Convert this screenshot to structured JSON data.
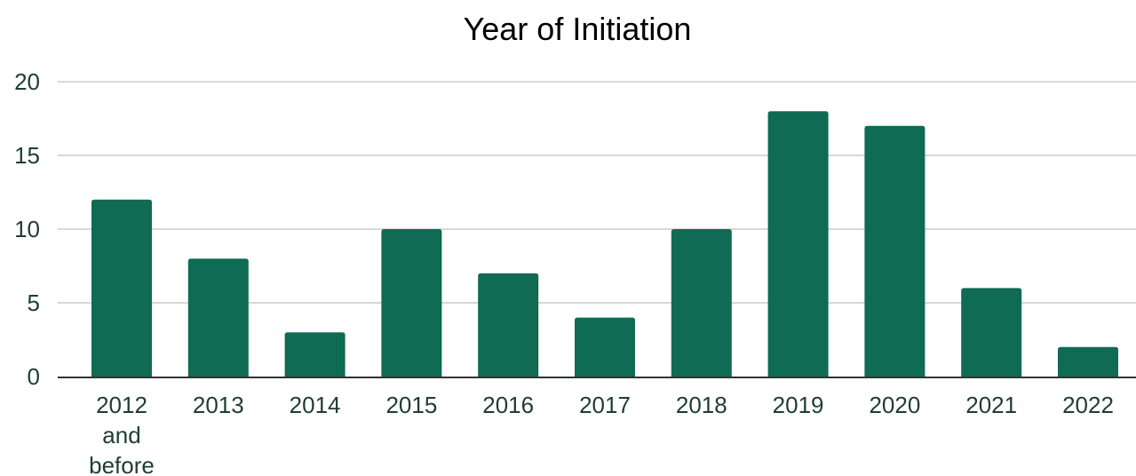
{
  "chart_data": {
    "type": "bar",
    "title": "Year of Initiation",
    "xlabel": "",
    "ylabel": "",
    "categories": [
      [
        "2012",
        "and",
        "before"
      ],
      [
        "2013"
      ],
      [
        "2014"
      ],
      [
        "2015"
      ],
      [
        "2016"
      ],
      [
        "2017"
      ],
      [
        "2018"
      ],
      [
        "2019"
      ],
      [
        "2020"
      ],
      [
        "2021"
      ],
      [
        "2022"
      ]
    ],
    "values": [
      12,
      8,
      3,
      10,
      7,
      4,
      10,
      18,
      17,
      6,
      2
    ],
    "ylim": [
      0,
      20
    ],
    "yticks": [
      "0",
      "5",
      "10",
      "15",
      "20"
    ],
    "grid": true,
    "legend": "none",
    "colors": {
      "bar": "#0f6b53",
      "grid": "#cccccc",
      "axis": "#333333",
      "tick_text": "#1e3d34",
      "title_text": "#000000"
    }
  }
}
